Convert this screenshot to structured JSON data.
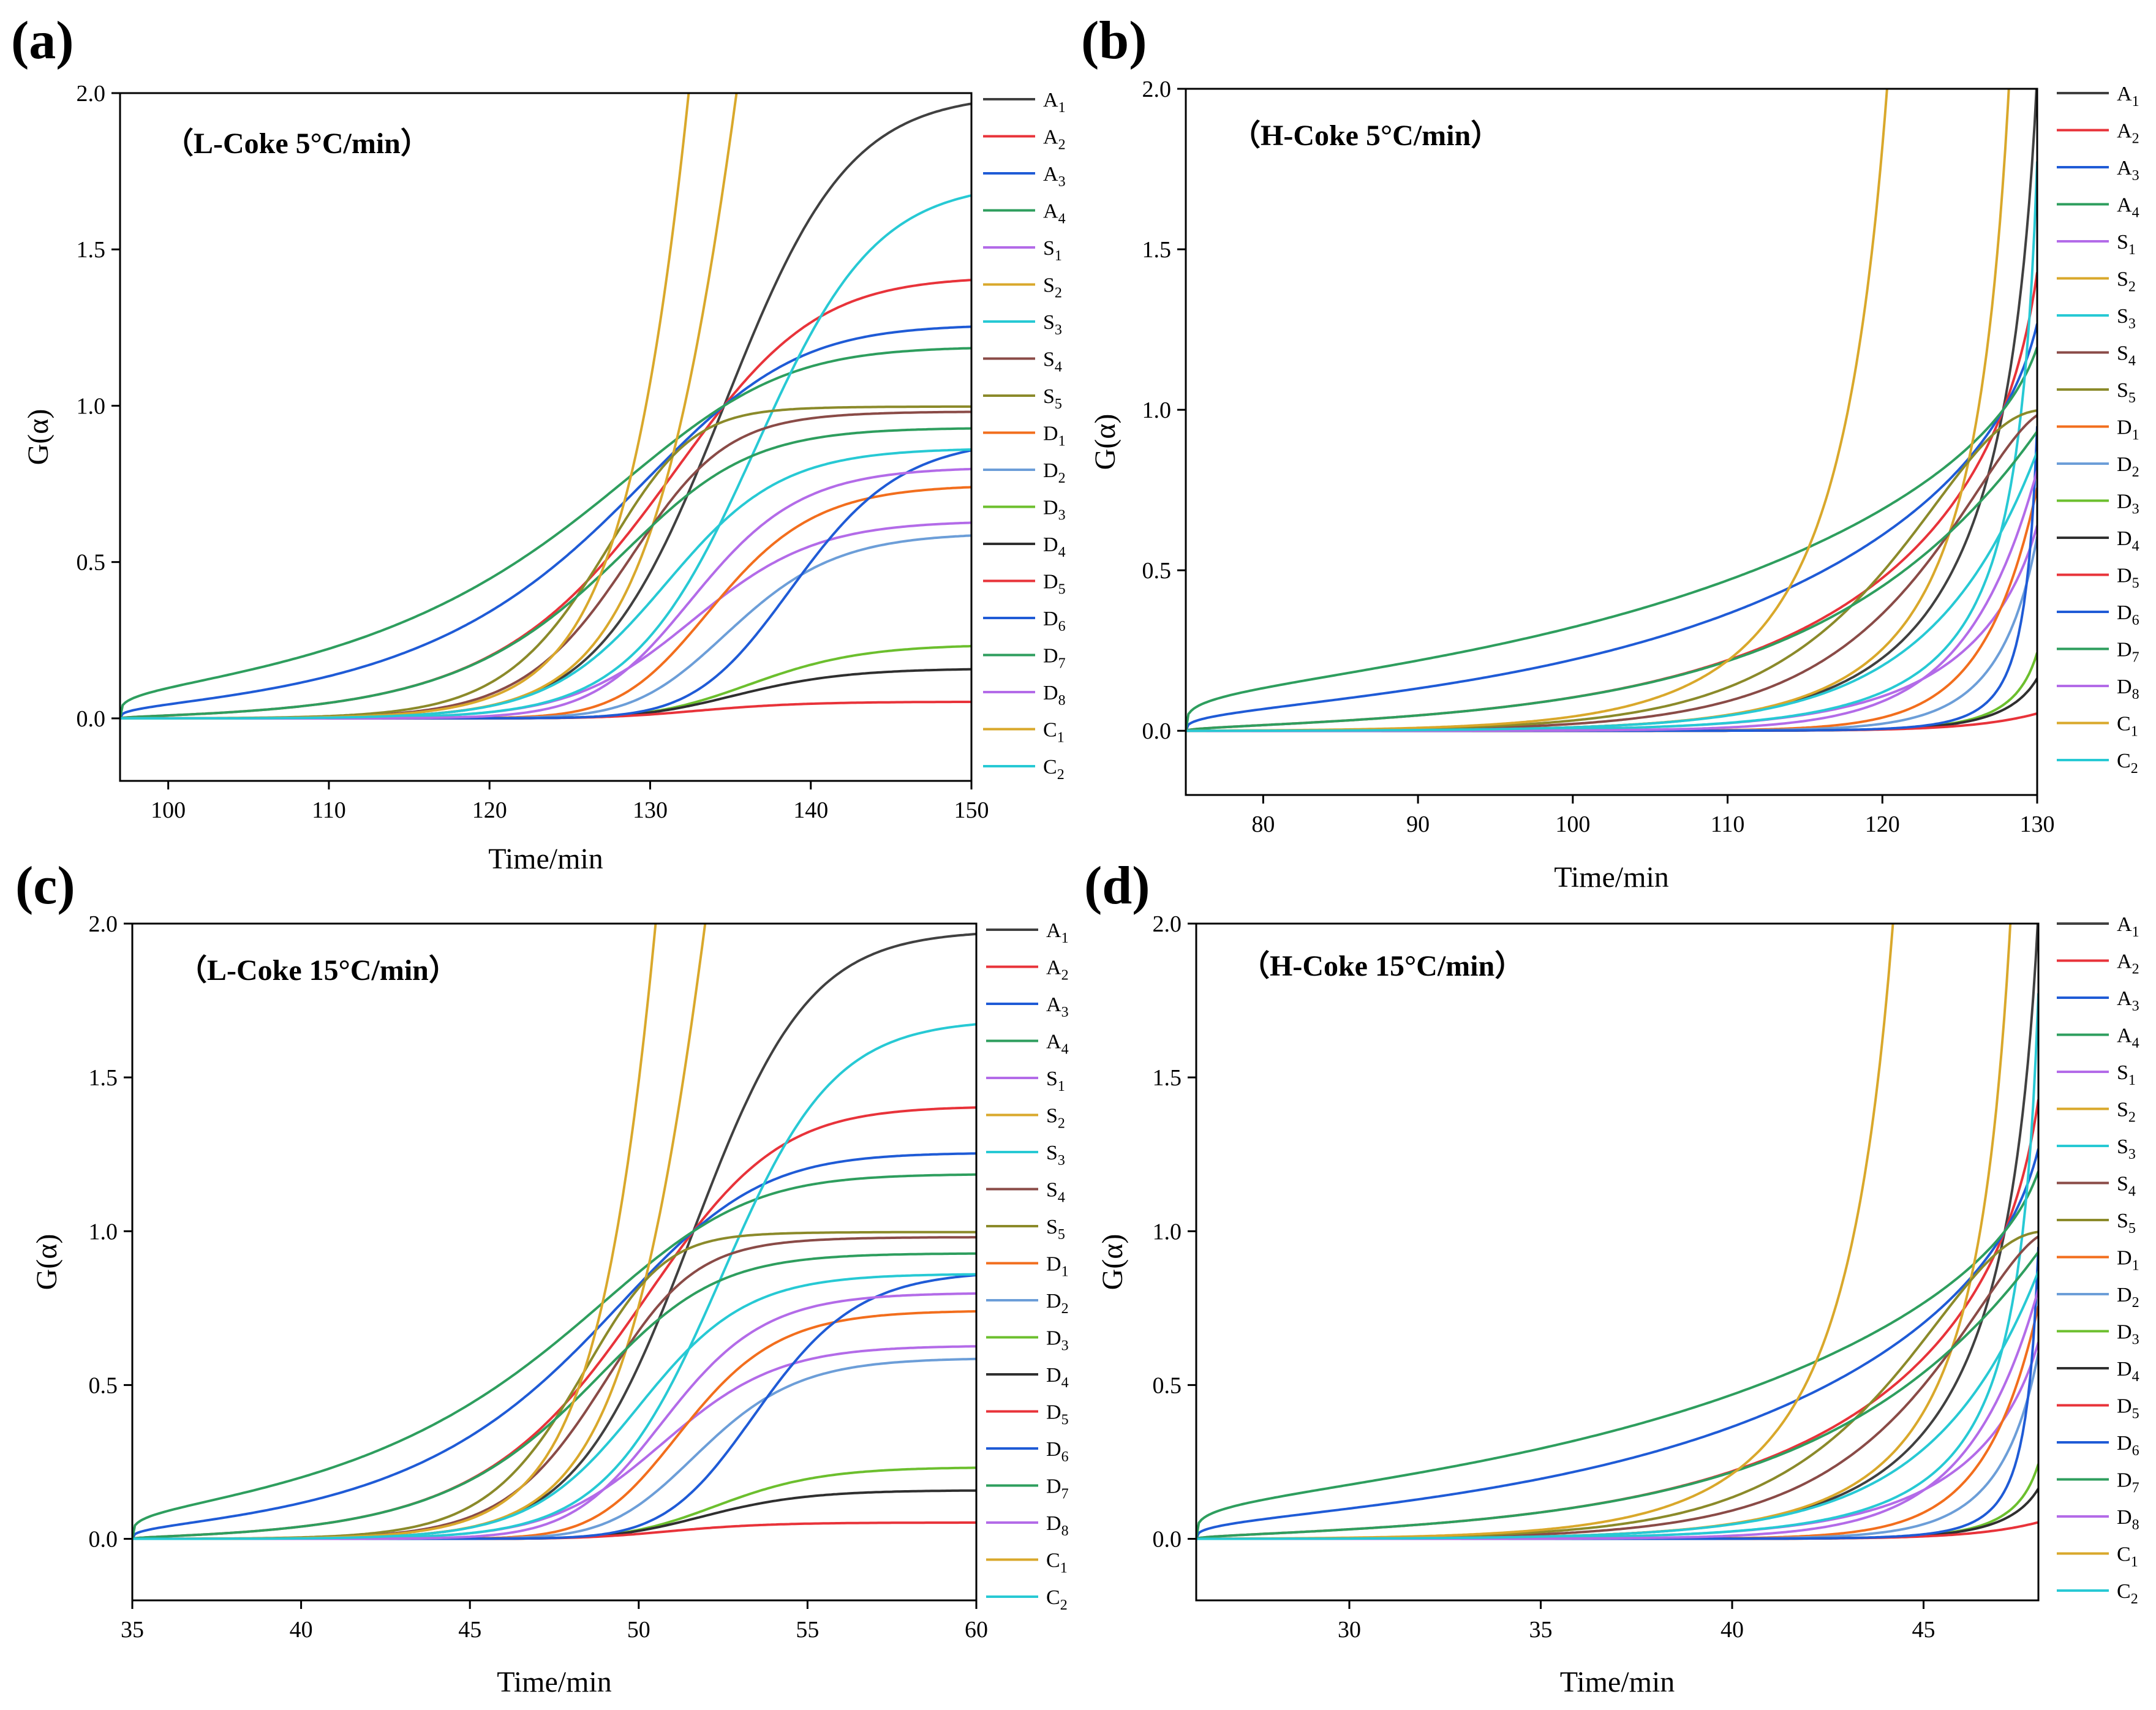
{
  "chart_data": [
    {
      "type": "line",
      "panel": "(a)",
      "annotation": "（L-Coke 5°C/min）",
      "xlabel": "Time/min",
      "ylabel": "G(α)",
      "xlim": [
        97,
        150
      ],
      "ylim": [
        -0.2,
        2.0
      ],
      "xticks": [
        "100",
        "110",
        "120",
        "130",
        "140",
        "150"
      ],
      "xtick_values": [
        100,
        110,
        120,
        130,
        140,
        150
      ],
      "yticks": [
        "0.0",
        "0.5",
        "1.0",
        "1.5",
        "2.0"
      ],
      "ytick_values": [
        0,
        0.5,
        1.0,
        1.5,
        2.0
      ],
      "alpha_model": {
        "mode": "logistic",
        "center": 131,
        "width": 3.6,
        "t0": 97,
        "t1": 150
      },
      "series_overrides": {
        "C1": {
          "x_end": 132.4
        }
      }
    },
    {
      "type": "line",
      "panel": "(b)",
      "annotation": "（H-Coke 5°C/min）",
      "xlabel": "Time/min",
      "ylabel": "G(α)",
      "xlim": [
        75,
        130
      ],
      "ylim": [
        -0.2,
        2.0
      ],
      "xticks": [
        "80",
        "90",
        "100",
        "110",
        "120",
        "130"
      ],
      "xtick_values": [
        80,
        90,
        100,
        110,
        120,
        130
      ],
      "yticks": [
        "0.0",
        "0.5",
        "1.0",
        "1.5",
        "2.0"
      ],
      "ytick_values": [
        0,
        0.5,
        1.0,
        1.5,
        2.0
      ],
      "alpha_model": {
        "mode": "exponential",
        "k": 8.0,
        "t0": 75,
        "t1": 130
      },
      "series_overrides": {
        "C1": {
          "x_end": 120.3
        }
      }
    },
    {
      "type": "line",
      "panel": "(c)",
      "annotation": "（L-Coke 15°C/min）",
      "xlabel": "Time/min",
      "ylabel": "G(α)",
      "xlim": [
        35,
        60
      ],
      "ylim": [
        -0.2,
        2.0
      ],
      "xticks": [
        "35",
        "40",
        "45",
        "50",
        "55",
        "60"
      ],
      "xtick_values": [
        35,
        40,
        45,
        50,
        55,
        60
      ],
      "yticks": [
        "0.0",
        "0.5",
        "1.0",
        "1.5",
        "2.0"
      ],
      "ytick_values": [
        0,
        0.5,
        1.0,
        1.5,
        2.0
      ],
      "alpha_model": {
        "mode": "logistic",
        "center": 50,
        "width": 1.6,
        "t0": 35,
        "t1": 60
      },
      "series_overrides": {
        "C1": {
          "x_end": 50.5
        }
      }
    },
    {
      "type": "line",
      "panel": "(d)",
      "annotation": "（H-Coke 15°C/min）",
      "xlabel": "Time/min",
      "ylabel": "G(α)",
      "xlim": [
        26,
        48
      ],
      "ylim": [
        -0.2,
        2.0
      ],
      "xticks": [
        "30",
        "35",
        "40",
        "45"
      ],
      "xtick_values": [
        30,
        35,
        40,
        45
      ],
      "yticks": [
        "0.0",
        "0.5",
        "1.0",
        "1.5",
        "2.0"
      ],
      "ytick_values": [
        0,
        0.5,
        1.0,
        1.5,
        2.0
      ],
      "alpha_model": {
        "mode": "exponential",
        "k": 8.0,
        "t0": 26,
        "t1": 48
      },
      "series_overrides": {
        "C1": {
          "x_end": 44.2
        }
      }
    }
  ],
  "legend": [
    {
      "key": "A1",
      "base": "A",
      "sub": "1",
      "color": "#404040"
    },
    {
      "key": "A2",
      "base": "A",
      "sub": "2",
      "color": "#e8333a"
    },
    {
      "key": "A3",
      "base": "A",
      "sub": "3",
      "color": "#1f5bd6"
    },
    {
      "key": "A4",
      "base": "A",
      "sub": "4",
      "color": "#2e9e5e"
    },
    {
      "key": "S1",
      "base": "S",
      "sub": "1",
      "color": "#b36be8"
    },
    {
      "key": "S2",
      "base": "S",
      "sub": "2",
      "color": "#d9a82b"
    },
    {
      "key": "S3",
      "base": "S",
      "sub": "3",
      "color": "#27c9d4"
    },
    {
      "key": "S4",
      "base": "S",
      "sub": "4",
      "color": "#8a4b47"
    },
    {
      "key": "S5",
      "base": "S",
      "sub": "5",
      "color": "#8b8a2a"
    },
    {
      "key": "D1",
      "base": "D",
      "sub": "1",
      "color": "#f26e1d"
    },
    {
      "key": "D2",
      "base": "D",
      "sub": "2",
      "color": "#6c9ed8"
    },
    {
      "key": "D3",
      "base": "D",
      "sub": "3",
      "color": "#6cbf2e"
    },
    {
      "key": "D4",
      "base": "D",
      "sub": "4",
      "color": "#2f2f2f"
    },
    {
      "key": "D5",
      "base": "D",
      "sub": "5",
      "color": "#e8333a"
    },
    {
      "key": "D6",
      "base": "D",
      "sub": "6",
      "color": "#1f5bd6"
    },
    {
      "key": "D7",
      "base": "D",
      "sub": "7",
      "color": "#2e9e5e"
    },
    {
      "key": "D8",
      "base": "D",
      "sub": "8",
      "color": "#b36be8"
    },
    {
      "key": "C1",
      "base": "C",
      "sub": "1",
      "color": "#d9a82b"
    },
    {
      "key": "C2",
      "base": "C",
      "sub": "2",
      "color": "#27c9d4"
    }
  ]
}
